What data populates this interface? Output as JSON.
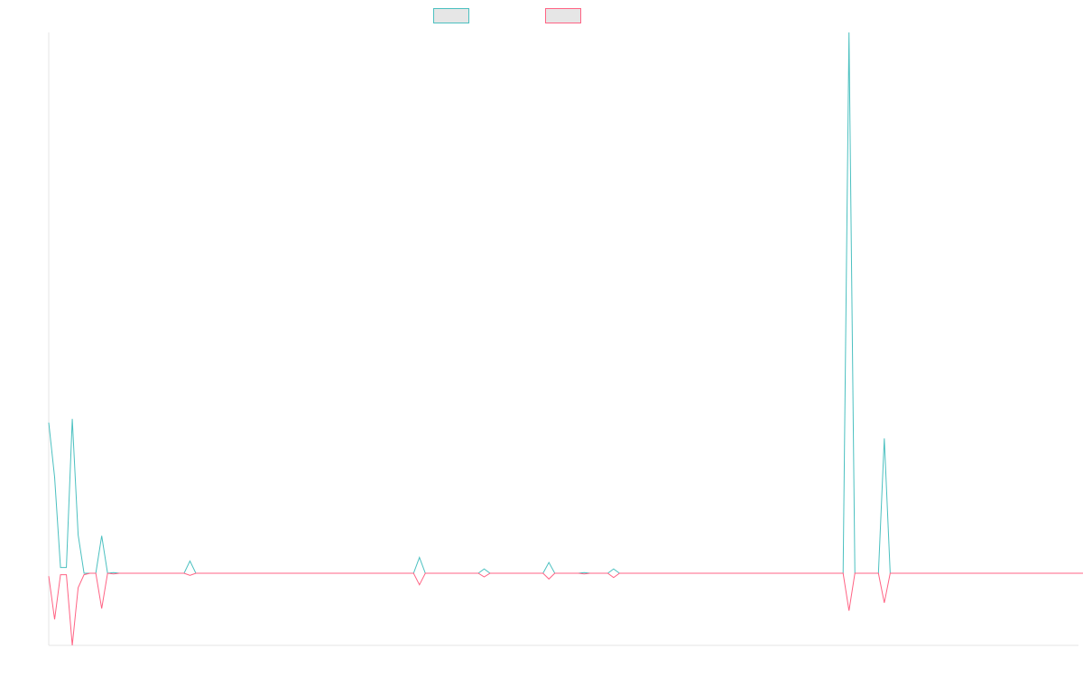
{
  "colors": {
    "series_a": "#4bc0c0",
    "series_b": "#ff6384",
    "axis": "#e5e5e5",
    "legend_fill": "#e6e6e6"
  },
  "chart_data": {
    "type": "line",
    "title": "",
    "xlabel": "",
    "ylabel": "",
    "grid": false,
    "legend": "top-center",
    "ylim": [
      -100,
      750
    ],
    "series": [
      {
        "name": "",
        "color": "#4bc0c0",
        "values": [
          209,
          133,
          8,
          8,
          214,
          53,
          0,
          0,
          0,
          52,
          0,
          1,
          0,
          0,
          0,
          0,
          0,
          0,
          0,
          0,
          0,
          0,
          0,
          0,
          17,
          0,
          0,
          0,
          0,
          0,
          0,
          0,
          0,
          0,
          0,
          0,
          0,
          0,
          0,
          0,
          0,
          0,
          0,
          0,
          0,
          0,
          0,
          0,
          0,
          0,
          0,
          0,
          0,
          0,
          0,
          0,
          0,
          0,
          0,
          0,
          0,
          0,
          0,
          22,
          0,
          0,
          0,
          0,
          0,
          0,
          0,
          0,
          0,
          0,
          6,
          0,
          0,
          0,
          0,
          0,
          0,
          0,
          0,
          0,
          0,
          15,
          0,
          0,
          0,
          0,
          0,
          1,
          0,
          0,
          0,
          0,
          6,
          0,
          0,
          0,
          0,
          0,
          0,
          0,
          0,
          0,
          0,
          0,
          0,
          0,
          0,
          0,
          0,
          0,
          0,
          0,
          0,
          0,
          0,
          0,
          0,
          0,
          0,
          0,
          0,
          0,
          0,
          0,
          0,
          0,
          0,
          0,
          0,
          0,
          0,
          0,
          750,
          0,
          0,
          0,
          0,
          0,
          187,
          0,
          0,
          0,
          0,
          0,
          0,
          0,
          0,
          0,
          0,
          0,
          0,
          0,
          0,
          0,
          0,
          0,
          0,
          0,
          0,
          0,
          0,
          0,
          0,
          0,
          0,
          0,
          0,
          0,
          0,
          0,
          0,
          0
        ]
      },
      {
        "name": "",
        "color": "#ff6384",
        "values": [
          -4,
          -64,
          -2,
          -2,
          -100,
          -20,
          -2,
          0,
          0,
          -49,
          0,
          -1,
          0,
          0,
          0,
          0,
          0,
          0,
          0,
          0,
          0,
          0,
          0,
          0,
          -3,
          0,
          0,
          0,
          0,
          0,
          0,
          0,
          0,
          0,
          0,
          0,
          0,
          0,
          0,
          0,
          0,
          0,
          0,
          0,
          0,
          0,
          0,
          0,
          0,
          0,
          0,
          0,
          0,
          0,
          0,
          0,
          0,
          0,
          0,
          0,
          0,
          0,
          0,
          -16,
          0,
          0,
          0,
          0,
          0,
          0,
          0,
          0,
          0,
          0,
          -5,
          0,
          0,
          0,
          0,
          0,
          0,
          0,
          0,
          0,
          0,
          -8,
          0,
          0,
          0,
          0,
          0,
          -1,
          0,
          0,
          0,
          0,
          -6,
          0,
          0,
          0,
          0,
          0,
          0,
          0,
          0,
          0,
          0,
          0,
          0,
          0,
          0,
          0,
          0,
          0,
          0,
          0,
          0,
          0,
          0,
          0,
          0,
          0,
          0,
          0,
          0,
          0,
          0,
          0,
          0,
          0,
          0,
          0,
          0,
          0,
          0,
          0,
          -52,
          0,
          0,
          0,
          0,
          0,
          -41,
          0,
          0,
          0,
          0,
          0,
          0,
          0,
          0,
          0,
          0,
          0,
          0,
          0,
          0,
          0,
          0,
          0,
          0,
          0,
          0,
          0,
          0,
          0,
          0,
          0,
          0,
          0,
          0,
          0,
          0,
          0,
          0,
          0,
          0
        ]
      }
    ]
  }
}
